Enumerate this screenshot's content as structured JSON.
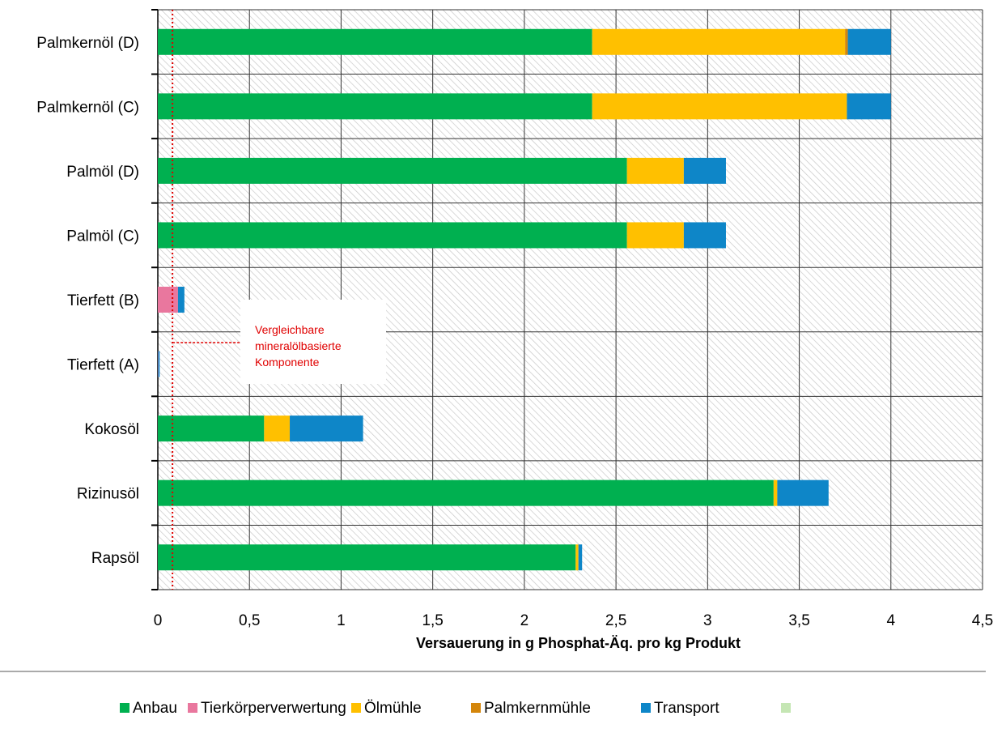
{
  "chart_data": {
    "type": "bar",
    "orientation": "horizontal",
    "stacked": true,
    "categories": [
      "Palmkernöl (D)",
      "Palmkernöl (C)",
      "Palmöl (D)",
      "Palmöl (C)",
      "Tierfett (B)",
      "Tierfett (A)",
      "Kokosöl",
      "Rizinusöl",
      "Rapsöl"
    ],
    "series": [
      {
        "name": "Anbau",
        "color": "#00b050",
        "values": [
          2.37,
          2.37,
          2.56,
          2.56,
          0,
          0,
          0.58,
          3.36,
          2.28
        ]
      },
      {
        "name": "Tierkörperverwertung",
        "color": "#e9779e",
        "values": [
          0,
          0,
          0,
          0,
          0.11,
          0.002,
          0,
          0,
          0
        ]
      },
      {
        "name": "Ölmühle",
        "color": "#ffc000",
        "values": [
          1.38,
          1.39,
          0.31,
          0.31,
          0,
          0,
          0.14,
          0.02,
          0.015
        ]
      },
      {
        "name": "Palmkernmühle",
        "color": "#d4860b",
        "values": [
          0.015,
          0,
          0,
          0,
          0,
          0,
          0,
          0,
          0
        ]
      },
      {
        "name": "Transport",
        "color": "#0e86c8",
        "values": [
          0.235,
          0.24,
          0.23,
          0.23,
          0.035,
          0.008,
          0.4,
          0.28,
          0.02
        ]
      },
      {
        "name": "",
        "color": "#c5e6b4",
        "values": [
          0,
          0,
          0,
          0,
          0,
          0,
          0,
          0,
          0
        ]
      }
    ],
    "xlabel": "Versauerung in g Phosphat-Äq. pro kg Produkt",
    "xlim": [
      0,
      4.5
    ],
    "xticks": [
      "0",
      "0,5",
      "1",
      "1,5",
      "2",
      "2,5",
      "3",
      "3,5",
      "4",
      "4,5"
    ],
    "grid": true,
    "background": "hatched",
    "legend_position": "bottom",
    "reference_line": {
      "x": 0.08,
      "color": "#e00000",
      "style": "dotted"
    },
    "annotation": {
      "lines": [
        "Vergleichbare",
        "mineralölbasierte",
        "Komponente"
      ],
      "color": "#e00000"
    }
  }
}
